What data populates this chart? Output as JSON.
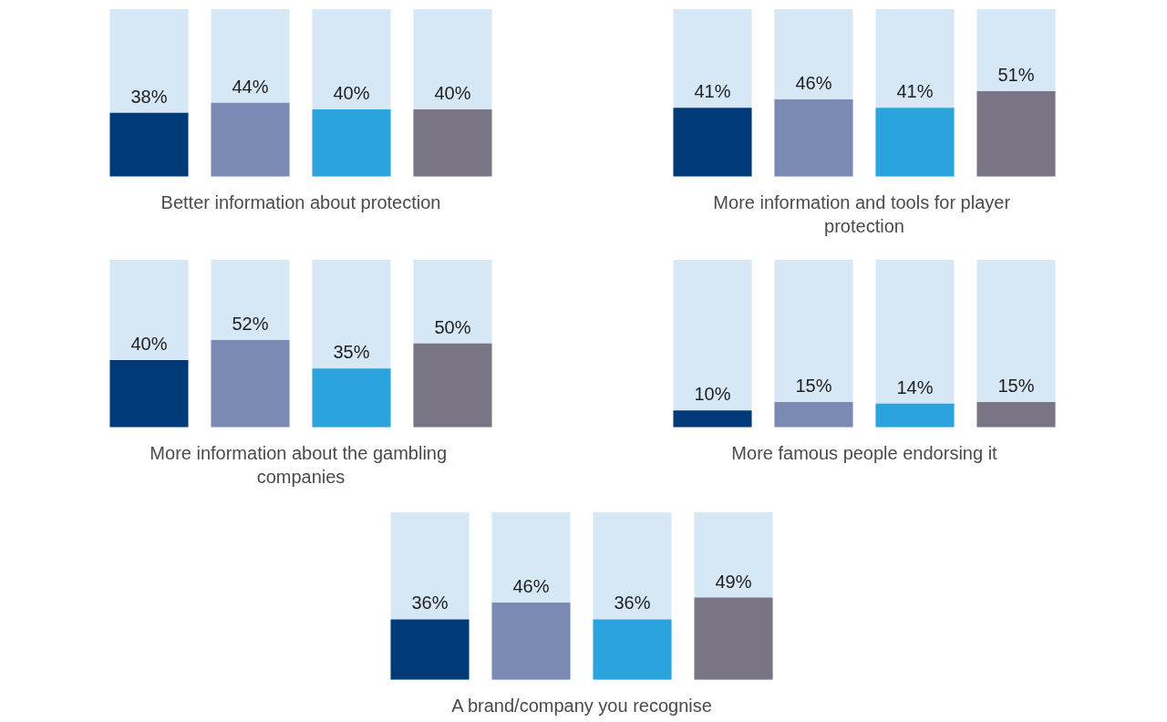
{
  "chart_data": [
    {
      "type": "bar",
      "xlabel": "Better information about protection",
      "categories": [
        null,
        null,
        null,
        null
      ],
      "values": [
        38,
        44,
        40,
        40
      ],
      "colors": [
        "#003a78",
        "#7b8ab5",
        "#2ba4de",
        "#7a7584"
      ],
      "value_labels": [
        "38%",
        "44%",
        "40%",
        "40%"
      ],
      "ylim": [
        0,
        100
      ],
      "tick_labels": false
    },
    {
      "type": "bar",
      "xlabel": "More information and tools for player protection",
      "categories": [
        null,
        null,
        null,
        null
      ],
      "values": [
        41,
        46,
        41,
        51
      ],
      "colors": [
        "#003a78",
        "#7b8ab5",
        "#2ba4de",
        "#7a7584"
      ],
      "value_labels": [
        "41%",
        "46%",
        "41%",
        "51%"
      ],
      "ylim": [
        0,
        100
      ],
      "tick_labels": false
    },
    {
      "type": "bar",
      "xlabel": "More information about the gambling companies",
      "categories": [
        null,
        null,
        null,
        null
      ],
      "values": [
        40,
        52,
        35,
        50
      ],
      "colors": [
        "#003a78",
        "#7b8ab5",
        "#2ba4de",
        "#7a7584"
      ],
      "value_labels": [
        "40%",
        "52%",
        "35%",
        "50%"
      ],
      "ylim": [
        0,
        100
      ],
      "tick_labels": false
    },
    {
      "type": "bar",
      "xlabel": "More famous people endorsing it",
      "categories": [
        null,
        null,
        null,
        null
      ],
      "values": [
        10,
        15,
        14,
        15
      ],
      "colors": [
        "#003a78",
        "#7b8ab5",
        "#2ba4de",
        "#7a7584"
      ],
      "value_labels": [
        "10%",
        "15%",
        "14%",
        "15%"
      ],
      "ylim": [
        0,
        100
      ],
      "tick_labels": false
    },
    {
      "type": "bar",
      "xlabel": "A brand/company you recognise",
      "categories": [
        null,
        null,
        null,
        null
      ],
      "values": [
        36,
        46,
        36,
        49
      ],
      "colors": [
        "#003a78",
        "#7b8ab5",
        "#2ba4de",
        "#7a7584"
      ],
      "value_labels": [
        "36%",
        "46%",
        "36%",
        "49%"
      ],
      "ylim": [
        0,
        100
      ],
      "tick_labels": false
    }
  ]
}
